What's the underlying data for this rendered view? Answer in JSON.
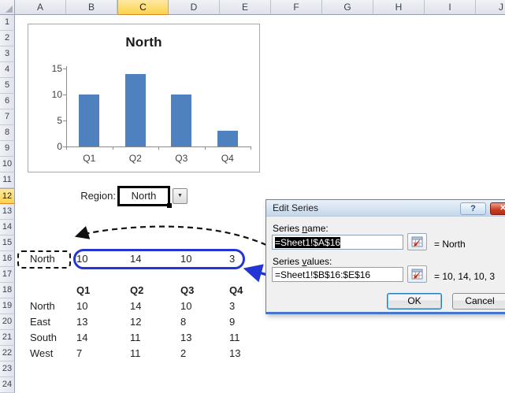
{
  "grid": {
    "columns": [
      "A",
      "B",
      "C",
      "D",
      "E",
      "F",
      "G",
      "H",
      "I",
      "J"
    ],
    "selected_column": "C",
    "rows": [
      "1",
      "2",
      "3",
      "4",
      "5",
      "6",
      "7",
      "8",
      "9",
      "10",
      "11",
      "12",
      "13",
      "14",
      "15",
      "16",
      "17",
      "18",
      "19",
      "20",
      "21",
      "22",
      "23",
      "24"
    ],
    "selected_row": "12"
  },
  "chart_data": {
    "type": "bar",
    "title": "North",
    "categories": [
      "Q1",
      "Q2",
      "Q3",
      "Q4"
    ],
    "values": [
      10,
      14,
      10,
      3
    ],
    "xlabel": "",
    "ylabel": "",
    "ylim": [
      0,
      15
    ],
    "yticks": [
      0,
      5,
      10,
      15
    ],
    "grid": false,
    "legend": false,
    "bar_color": "#4E81BD"
  },
  "region": {
    "label": "Region:",
    "value": "North",
    "dropdown_icon": "▼"
  },
  "series_row": {
    "label": "North",
    "values": [
      "10",
      "14",
      "10",
      "3"
    ]
  },
  "table": {
    "headers": [
      "Q1",
      "Q2",
      "Q3",
      "Q4"
    ],
    "rows": [
      {
        "label": "North",
        "values": [
          "10",
          "14",
          "10",
          "3"
        ]
      },
      {
        "label": "East",
        "values": [
          "13",
          "12",
          "8",
          "9"
        ]
      },
      {
        "label": "South",
        "values": [
          "14",
          "11",
          "13",
          "11"
        ]
      },
      {
        "label": "West",
        "values": [
          "7",
          "11",
          "2",
          "13"
        ]
      }
    ]
  },
  "dialog": {
    "title": "Edit Series",
    "help_label": "?",
    "close_label": "✕",
    "name_label": {
      "pre": "Series ",
      "key": "n",
      "post": "ame:"
    },
    "name_value": "=Sheet1!$A$16",
    "name_result": "= North",
    "values_label": {
      "pre": "Series ",
      "key": "v",
      "post": "alues:"
    },
    "values_value": "=Sheet1!$B$16:$E$16",
    "values_result": "= 10, 14, 10, 3",
    "ok_label": "OK",
    "cancel_label": "Cancel"
  },
  "colors": {
    "bar_blue": "#4E81BD",
    "annotation_blue": "#2336d4",
    "header_selected_yellow": "#FCD24B"
  }
}
